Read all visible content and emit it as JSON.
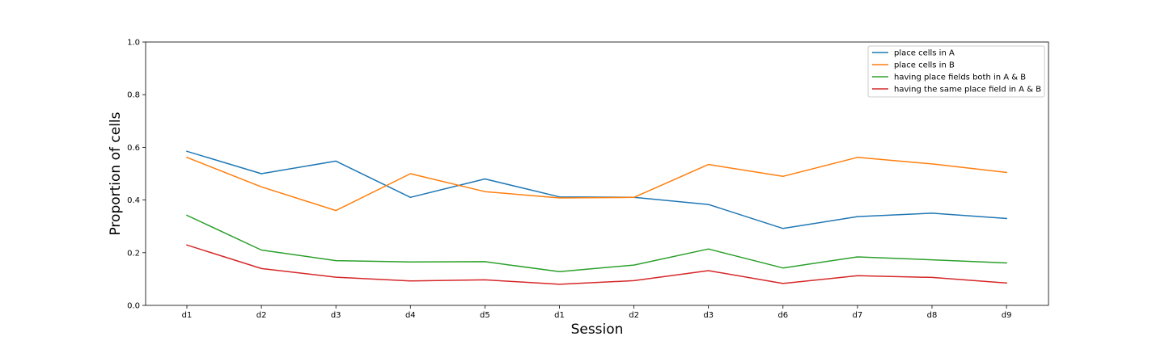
{
  "chart_data": {
    "type": "line",
    "title": "",
    "xlabel": "Session",
    "ylabel": "Proportion of cells",
    "categories": [
      "d1",
      "d2",
      "d3",
      "d4",
      "d5",
      "d1",
      "d2",
      "d3",
      "d6",
      "d7",
      "d8",
      "d9"
    ],
    "ylim": [
      0.0,
      1.0
    ],
    "yticks": [
      "0.0",
      "0.2",
      "0.4",
      "0.6",
      "0.8",
      "1.0"
    ],
    "grid": false,
    "legend_position": "top-right",
    "series": [
      {
        "name": "place cells in A",
        "color": "#1f77b4",
        "values": [
          0.585,
          0.5,
          0.548,
          0.41,
          0.48,
          0.412,
          0.41,
          0.383,
          0.292,
          0.337,
          0.35,
          0.33
        ]
      },
      {
        "name": "place cells in B",
        "color": "#ff7f0e",
        "values": [
          0.562,
          0.45,
          0.36,
          0.5,
          0.432,
          0.408,
          0.41,
          0.535,
          0.49,
          0.562,
          0.537,
          0.505
        ]
      },
      {
        "name": "having place fields both in A & B",
        "color": "#2ca02c",
        "values": [
          0.342,
          0.21,
          0.17,
          0.165,
          0.166,
          0.128,
          0.153,
          0.214,
          0.142,
          0.184,
          0.173,
          0.161
        ]
      },
      {
        "name": "having the same place field in A & B",
        "color": "#d62728",
        "values": [
          0.229,
          0.14,
          0.107,
          0.093,
          0.097,
          0.08,
          0.094,
          0.132,
          0.083,
          0.113,
          0.106,
          0.085
        ]
      }
    ]
  }
}
